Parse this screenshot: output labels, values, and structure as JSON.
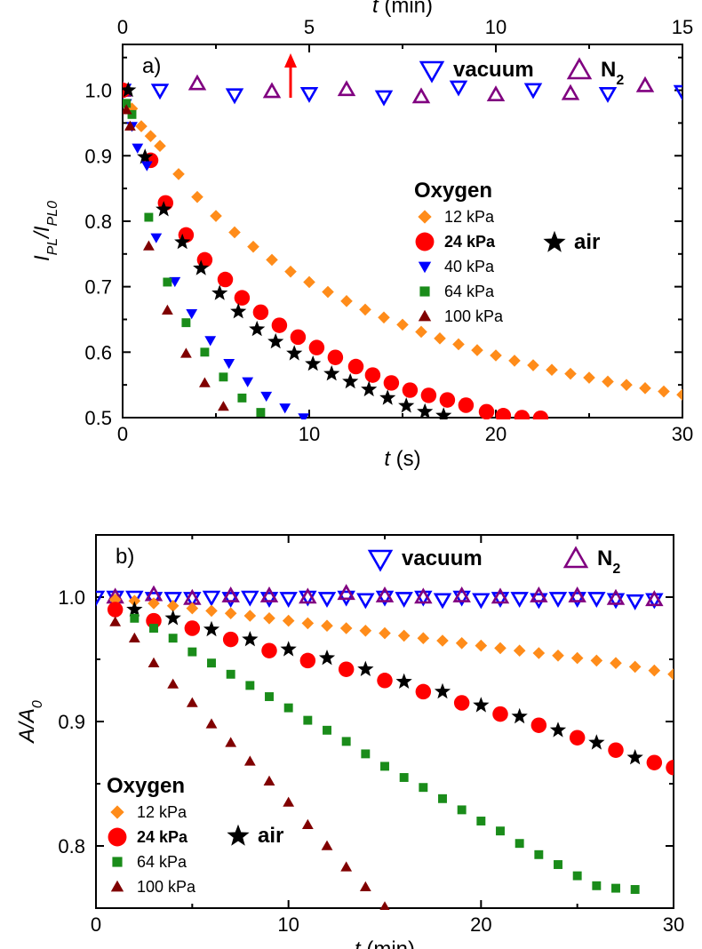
{
  "chart_data": [
    {
      "type": "scatter",
      "panel_label": "a)",
      "xlabel": "t (s)",
      "x_label_var": "t",
      "x_label_unit": "(s)",
      "xlim": [
        0,
        30
      ],
      "xticks": [
        0,
        10,
        20,
        30
      ],
      "ylabel": "I_PL/I_PL0",
      "ylim": [
        0.5,
        1.07
      ],
      "yticks": [
        "0.5",
        "0.6",
        "0.7",
        "0.8",
        "0.9",
        "1.0"
      ],
      "top_xlabel": "t (min)",
      "top_x_label_var": "t",
      "top_x_label_unit": "(min)",
      "top_xlim": [
        0,
        15
      ],
      "top_xticks": [
        0,
        5,
        10,
        15
      ],
      "annotation": {
        "type": "arrow",
        "color": "#ff0000",
        "x_min": 4.5
      },
      "legend_top": {
        "position": "top-right",
        "entries": [
          "vacuum",
          "N2"
        ]
      },
      "legend_main": {
        "title": "Oxygen",
        "position": "center-right",
        "entries": [
          "12 kPa",
          "24 kPa",
          "40 kPa",
          "64 kPa",
          "100 kPa"
        ]
      },
      "legend_air": "air",
      "series": [
        {
          "name": "vacuum",
          "axis": "top",
          "marker": "triangle-down-open",
          "color": "#0000ff",
          "x": [
            0,
            1,
            3,
            5,
            7,
            9,
            11,
            13,
            15
          ],
          "y": [
            1.0,
            1.0,
            0.993,
            0.995,
            0.99,
            1.005,
            1.001,
            0.995,
            0.998
          ]
        },
        {
          "name": "N2",
          "axis": "top",
          "marker": "triangle-up-open",
          "color": "#800080",
          "x": [
            0,
            2,
            4,
            6,
            8,
            10,
            12,
            14
          ],
          "y": [
            1.0,
            1.01,
            0.998,
            1.001,
            0.99,
            0.993,
            0.995,
            1.007
          ]
        },
        {
          "name": "12 kPa",
          "marker": "diamond",
          "color": "#ff8c1a",
          "x": [
            0,
            0.5,
            1,
            1.5,
            2,
            3,
            4,
            5,
            6,
            7,
            8,
            9,
            10,
            11,
            12,
            13,
            14,
            15,
            16,
            17,
            18,
            19,
            20,
            21,
            22,
            23,
            24,
            25,
            26,
            27,
            28,
            29,
            30
          ],
          "y": [
            1.0,
            0.972,
            0.945,
            0.93,
            0.915,
            0.872,
            0.837,
            0.808,
            0.783,
            0.761,
            0.741,
            0.723,
            0.707,
            0.692,
            0.678,
            0.665,
            0.653,
            0.642,
            0.631,
            0.621,
            0.612,
            0.603,
            0.595,
            0.587,
            0.58,
            0.573,
            0.567,
            0.561,
            0.555,
            0.55,
            0.545,
            0.54,
            0.535
          ]
        },
        {
          "name": "24 kPa",
          "marker": "circle",
          "color": "#ff0000",
          "x": [
            0,
            1.5,
            2.3,
            3.4,
            4.4,
            5.5,
            6.4,
            7.4,
            8.4,
            9.4,
            10.4,
            11.4,
            12.5,
            13.4,
            14.4,
            15.4,
            16.4,
            17.4,
            18.4,
            19.5,
            20.4,
            21.4,
            22.4
          ],
          "y": [
            1.0,
            0.893,
            0.828,
            0.779,
            0.741,
            0.711,
            0.683,
            0.661,
            0.641,
            0.623,
            0.607,
            0.592,
            0.578,
            0.565,
            0.553,
            0.542,
            0.534,
            0.527,
            0.519,
            0.509,
            0.503,
            0.5,
            0.499
          ]
        },
        {
          "name": "air",
          "marker": "star",
          "color": "#000000",
          "x": [
            0.3,
            1.2,
            2.2,
            3.2,
            4.2,
            5.2,
            6.2,
            7.2,
            8.2,
            9.2,
            10.2,
            11.2,
            12.2,
            13.2,
            14.2,
            15.2,
            16.2,
            17.2
          ],
          "y": [
            1.0,
            0.898,
            0.818,
            0.768,
            0.728,
            0.69,
            0.662,
            0.635,
            0.616,
            0.598,
            0.582,
            0.567,
            0.555,
            0.543,
            0.53,
            0.518,
            0.509,
            0.503
          ]
        },
        {
          "name": "40 kPa",
          "marker": "triangle-down",
          "color": "#0000ff",
          "x": [
            0.2,
            0.5,
            0.8,
            1.3,
            1.8,
            2.8,
            3.7,
            4.7,
            5.7,
            6.7,
            7.7,
            8.7,
            9.7
          ],
          "y": [
            0.98,
            0.945,
            0.912,
            0.885,
            0.775,
            0.708,
            0.659,
            0.618,
            0.583,
            0.555,
            0.533,
            0.515,
            0.5
          ]
        },
        {
          "name": "64 kPa",
          "marker": "square",
          "color": "#1a8c1a",
          "x": [
            0.2,
            0.5,
            1.4,
            2.4,
            3.4,
            4.4,
            5.4,
            6.4,
            7.4
          ],
          "y": [
            0.98,
            0.963,
            0.806,
            0.707,
            0.645,
            0.6,
            0.562,
            0.53,
            0.508
          ]
        },
        {
          "name": "100 kPa",
          "marker": "triangle-up",
          "color": "#800000",
          "x": [
            0.2,
            0.4,
            1.4,
            2.4,
            3.4,
            4.4,
            5.4
          ],
          "y": [
            0.97,
            0.945,
            0.762,
            0.664,
            0.598,
            0.553,
            0.517
          ]
        }
      ]
    },
    {
      "type": "scatter",
      "panel_label": "b)",
      "xlabel": "t (min)",
      "x_label_var": "t",
      "x_label_unit": "(min)",
      "xlim": [
        0,
        30
      ],
      "xticks": [
        0,
        10,
        20,
        30
      ],
      "ylabel": "A/A_0",
      "ylim": [
        0.75,
        1.05
      ],
      "yticks": [
        "0.8",
        "0.9",
        "1.0"
      ],
      "legend_top": {
        "position": "top-right",
        "entries": [
          "vacuum",
          "N2"
        ]
      },
      "legend_main": {
        "title": "Oxygen",
        "position": "bottom-left",
        "entries": [
          "12 kPa",
          "24 kPa",
          "64 kPa",
          "100 kPa"
        ]
      },
      "legend_air": "air",
      "series": [
        {
          "name": "vacuum",
          "marker": "triangle-down-open",
          "color": "#0000ff",
          "x": [
            0,
            1,
            2,
            3,
            4,
            5,
            6,
            7,
            8,
            9,
            10,
            11,
            12,
            13,
            14,
            15,
            16,
            17,
            18,
            19,
            20,
            21,
            22,
            23,
            24,
            25,
            26,
            27,
            28,
            29
          ],
          "y": [
            1.0,
            1.0,
            1.0,
            0.999,
            0.999,
            0.999,
            1.0,
            0.999,
            1.0,
            0.999,
            0.999,
            1.0,
            0.999,
            1.0,
            0.998,
            1.0,
            0.999,
            1.0,
            0.998,
            1.0,
            0.998,
            0.999,
            0.999,
            0.998,
            0.999,
            0.999,
            0.999,
            0.998,
            0.997,
            0.998
          ]
        },
        {
          "name": "N2",
          "marker": "triangle-up-open",
          "color": "#800080",
          "x": [
            1,
            3,
            5,
            7,
            9,
            11,
            13,
            15,
            17,
            19,
            21,
            23,
            25,
            27,
            29
          ],
          "y": [
            1.0,
            1.002,
            0.999,
            1.001,
            1.001,
            1.0,
            1.003,
            1.001,
            1.0,
            1.001,
            1.0,
            1.001,
            1.001,
            0.999,
            0.998
          ]
        },
        {
          "name": "12 kPa",
          "marker": "diamond",
          "color": "#ff8c1a",
          "x": [
            1,
            2,
            3,
            4,
            5,
            6,
            7,
            8,
            9,
            10,
            11,
            12,
            13,
            14,
            15,
            16,
            17,
            18,
            19,
            20,
            21,
            22,
            23,
            24,
            25,
            26,
            27,
            28,
            29,
            30
          ],
          "y": [
            0.998,
            0.997,
            0.995,
            0.993,
            0.991,
            0.989,
            0.987,
            0.985,
            0.983,
            0.981,
            0.979,
            0.977,
            0.975,
            0.973,
            0.971,
            0.969,
            0.967,
            0.965,
            0.963,
            0.961,
            0.959,
            0.957,
            0.955,
            0.953,
            0.951,
            0.949,
            0.947,
            0.944,
            0.941,
            0.938
          ]
        },
        {
          "name": "24 kPa",
          "marker": "circle",
          "color": "#ff0000",
          "x": [
            1,
            3,
            5,
            7,
            9,
            11,
            13,
            15,
            17,
            19,
            21,
            23,
            25,
            27,
            29,
            30
          ],
          "y": [
            0.99,
            0.981,
            0.975,
            0.966,
            0.957,
            0.949,
            0.942,
            0.933,
            0.924,
            0.915,
            0.906,
            0.897,
            0.887,
            0.877,
            0.867,
            0.863
          ]
        },
        {
          "name": "air",
          "marker": "star",
          "color": "#000000",
          "x": [
            2,
            4,
            6,
            8,
            10,
            12,
            14,
            16,
            18,
            20,
            22,
            24,
            26,
            28
          ],
          "y": [
            0.99,
            0.983,
            0.974,
            0.966,
            0.958,
            0.951,
            0.942,
            0.932,
            0.924,
            0.913,
            0.904,
            0.893,
            0.883,
            0.871
          ]
        },
        {
          "name": "64 kPa",
          "marker": "square",
          "color": "#1a8c1a",
          "x": [
            2,
            3,
            4,
            5,
            6,
            7,
            8,
            9,
            10,
            11,
            12,
            13,
            14,
            15,
            16,
            17,
            18,
            19,
            20,
            21,
            22,
            23,
            24,
            25,
            26,
            27,
            28
          ],
          "y": [
            0.983,
            0.975,
            0.967,
            0.956,
            0.947,
            0.938,
            0.929,
            0.92,
            0.911,
            0.901,
            0.893,
            0.884,
            0.874,
            0.864,
            0.855,
            0.847,
            0.838,
            0.829,
            0.82,
            0.812,
            0.802,
            0.793,
            0.785,
            0.776,
            0.768,
            0.766,
            0.765
          ]
        },
        {
          "name": "100 kPa",
          "marker": "triangle-up",
          "color": "#800000",
          "x": [
            1,
            2,
            3,
            4,
            5,
            6,
            7,
            8,
            9,
            10,
            11,
            12,
            13,
            14,
            15
          ],
          "y": [
            0.98,
            0.967,
            0.947,
            0.93,
            0.915,
            0.898,
            0.883,
            0.868,
            0.852,
            0.835,
            0.817,
            0.8,
            0.783,
            0.767,
            0.751
          ]
        }
      ]
    }
  ]
}
